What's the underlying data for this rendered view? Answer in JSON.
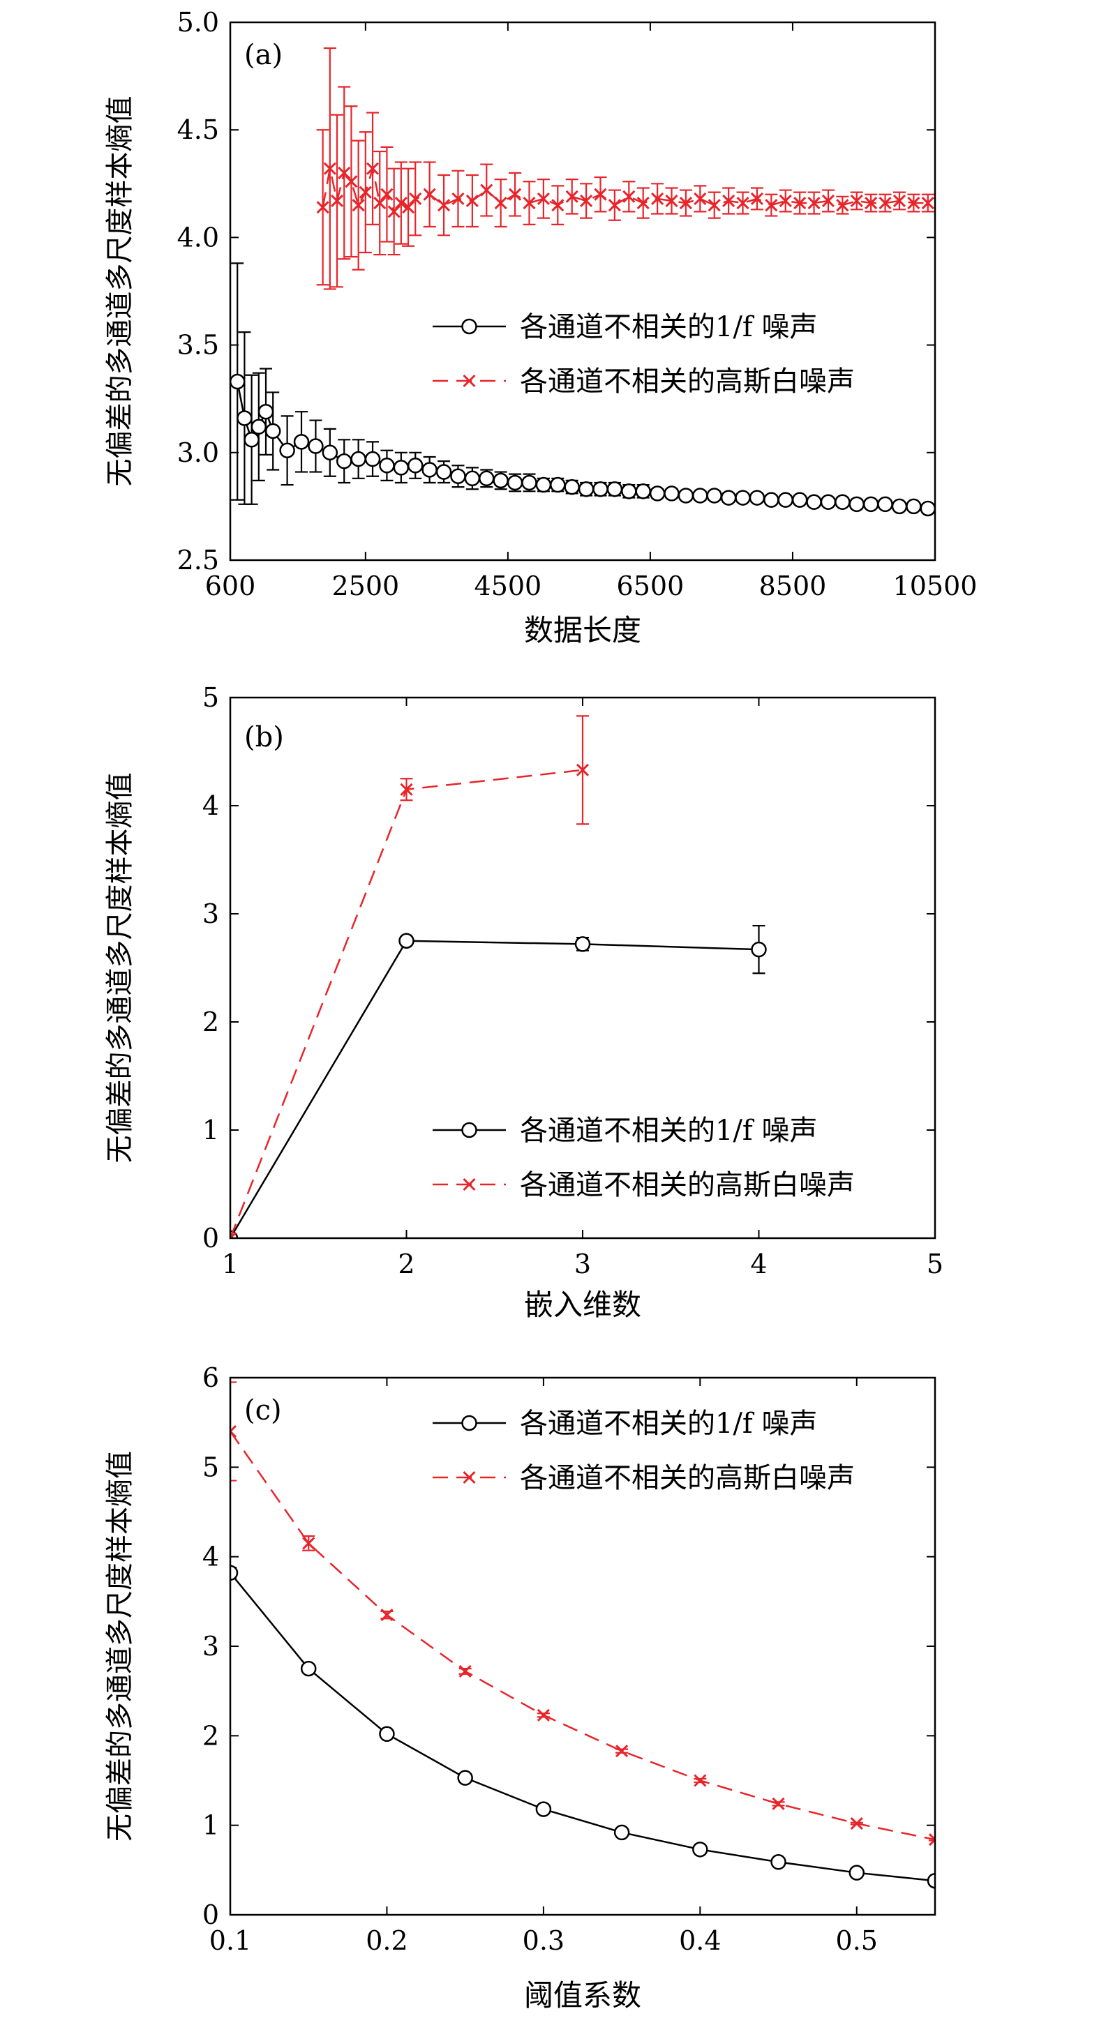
{
  "colors": {
    "black_series": "#000000",
    "red_series": "#e8242a",
    "axis": "#000000"
  },
  "chart_data": [
    {
      "type": "line",
      "panel_label": "(a)",
      "xlabel": "数据长度",
      "ylabel": "无偏差的多通道多尺度样本熵值",
      "xlim": [
        600,
        10500
      ],
      "ylim": [
        2.5,
        5.0
      ],
      "xticks": [
        "600",
        "2500",
        "4500",
        "6500",
        "8500",
        "10500"
      ],
      "yticks": [
        "2.5",
        "3.0",
        "3.5",
        "4.0",
        "4.5",
        "5.0"
      ],
      "legend": [
        "各通道不相关的1/f 噪声",
        "各通道不相关的高斯白噪声"
      ],
      "series": [
        {
          "name": "各通道不相关的1/f 噪声",
          "marker": "circle",
          "dash": false,
          "color": "#000000",
          "x": [
            700,
            800,
            900,
            1000,
            1100,
            1200,
            1400,
            1600,
            1800,
            2000,
            2200,
            2400,
            2600,
            2800,
            3000,
            3200,
            3400,
            3600,
            3800,
            4000,
            4200,
            4400,
            4600,
            4800,
            5000,
            5200,
            5400,
            5600,
            5800,
            6000,
            6200,
            6400,
            6600,
            6800,
            7000,
            7200,
            7400,
            7600,
            7800,
            8000,
            8200,
            8400,
            8600,
            8800,
            9000,
            9200,
            9400,
            9600,
            9800,
            10000,
            10200,
            10400
          ],
          "y": [
            3.33,
            3.16,
            3.06,
            3.12,
            3.19,
            3.1,
            3.01,
            3.05,
            3.03,
            3.0,
            2.96,
            2.97,
            2.97,
            2.94,
            2.93,
            2.94,
            2.92,
            2.91,
            2.89,
            2.88,
            2.88,
            2.87,
            2.86,
            2.86,
            2.85,
            2.85,
            2.84,
            2.83,
            2.83,
            2.83,
            2.82,
            2.82,
            2.81,
            2.81,
            2.8,
            2.8,
            2.8,
            2.79,
            2.79,
            2.79,
            2.78,
            2.78,
            2.78,
            2.77,
            2.77,
            2.77,
            2.76,
            2.76,
            2.76,
            2.75,
            2.75,
            2.74
          ],
          "err": [
            0.55,
            0.4,
            0.3,
            0.25,
            0.2,
            0.18,
            0.16,
            0.14,
            0.12,
            0.11,
            0.1,
            0.09,
            0.08,
            0.07,
            0.07,
            0.06,
            0.06,
            0.05,
            0.05,
            0.05,
            0.04,
            0.04,
            0.04,
            0.04,
            0.03,
            0.03,
            0.03,
            0.03,
            0.03,
            0.03,
            0.03,
            0.03,
            0.02,
            0.02,
            0.02,
            0.02,
            0.02,
            0.02,
            0.02,
            0.02,
            0.02,
            0.02,
            0.02,
            0.02,
            0.02,
            0.02,
            0.02,
            0.02,
            0.02,
            0.02,
            0.02,
            0.02
          ]
        },
        {
          "name": "各通道不相关的高斯白噪声",
          "marker": "x",
          "dash": true,
          "color": "#e8242a",
          "x": [
            1900,
            2000,
            2100,
            2200,
            2300,
            2400,
            2500,
            2600,
            2700,
            2800,
            2900,
            3000,
            3100,
            3200,
            3400,
            3600,
            3800,
            4000,
            4200,
            4400,
            4600,
            4800,
            5000,
            5200,
            5400,
            5600,
            5800,
            6000,
            6200,
            6400,
            6600,
            6800,
            7000,
            7200,
            7400,
            7600,
            7800,
            8000,
            8200,
            8400,
            8600,
            8800,
            9000,
            9200,
            9400,
            9600,
            9800,
            10000,
            10200,
            10400
          ],
          "y": [
            4.14,
            4.32,
            4.17,
            4.3,
            4.26,
            4.15,
            4.21,
            4.32,
            4.16,
            4.2,
            4.12,
            4.16,
            4.14,
            4.18,
            4.2,
            4.15,
            4.18,
            4.17,
            4.22,
            4.16,
            4.2,
            4.16,
            4.18,
            4.15,
            4.19,
            4.17,
            4.2,
            4.15,
            4.19,
            4.16,
            4.18,
            4.17,
            4.16,
            4.18,
            4.15,
            4.17,
            4.16,
            4.18,
            4.15,
            4.17,
            4.16,
            4.16,
            4.17,
            4.15,
            4.17,
            4.16,
            4.16,
            4.17,
            4.16,
            4.16
          ],
          "err": [
            0.36,
            0.56,
            0.4,
            0.4,
            0.35,
            0.3,
            0.28,
            0.26,
            0.24,
            0.22,
            0.2,
            0.19,
            0.18,
            0.17,
            0.15,
            0.14,
            0.13,
            0.12,
            0.12,
            0.11,
            0.1,
            0.1,
            0.09,
            0.09,
            0.08,
            0.08,
            0.08,
            0.07,
            0.07,
            0.07,
            0.07,
            0.06,
            0.06,
            0.06,
            0.06,
            0.06,
            0.05,
            0.05,
            0.05,
            0.05,
            0.05,
            0.05,
            0.05,
            0.04,
            0.04,
            0.04,
            0.04,
            0.04,
            0.04,
            0.04
          ]
        }
      ]
    },
    {
      "type": "line",
      "panel_label": "(b)",
      "xlabel": "嵌入维数",
      "ylabel": "无偏差的多通道多尺度样本熵值",
      "xlim": [
        1,
        5
      ],
      "ylim": [
        0,
        5
      ],
      "xticks": [
        "1",
        "2",
        "3",
        "4",
        "5"
      ],
      "yticks": [
        "0",
        "1",
        "2",
        "3",
        "4",
        "5"
      ],
      "legend": [
        "各通道不相关的1/f 噪声",
        "各通道不相关的高斯白噪声"
      ],
      "series": [
        {
          "name": "各通道不相关的1/f 噪声",
          "marker": "circle",
          "dash": false,
          "color": "#000000",
          "x": [
            1,
            2,
            3,
            4
          ],
          "y": [
            0,
            2.75,
            2.72,
            2.67
          ],
          "err": [
            0,
            0.02,
            0.06,
            0.22
          ]
        },
        {
          "name": "各通道不相关的高斯白噪声",
          "marker": "x",
          "dash": true,
          "color": "#e8242a",
          "x": [
            1,
            2,
            3
          ],
          "y": [
            0,
            4.15,
            4.33
          ],
          "err": [
            0,
            0.1,
            0.5
          ]
        }
      ]
    },
    {
      "type": "line",
      "panel_label": "(c)",
      "xlabel": "阈值系数",
      "ylabel": "无偏差的多通道多尺度样本熵值",
      "xlim": [
        0.1,
        0.55
      ],
      "ylim": [
        0,
        6
      ],
      "xticks": [
        "0.1",
        "0.2",
        "0.3",
        "0.4",
        "0.5"
      ],
      "xtick_values": [
        0.1,
        0.2,
        0.3,
        0.4,
        0.5
      ],
      "yticks": [
        "0",
        "1",
        "2",
        "3",
        "4",
        "5",
        "6"
      ],
      "legend": [
        "各通道不相关的1/f 噪声",
        "各通道不相关的高斯白噪声"
      ],
      "series": [
        {
          "name": "各通道不相关的1/f 噪声",
          "marker": "circle",
          "dash": false,
          "color": "#000000",
          "x": [
            0.1,
            0.15,
            0.2,
            0.25,
            0.3,
            0.35,
            0.4,
            0.45,
            0.5,
            0.55
          ],
          "y": [
            3.82,
            2.75,
            2.02,
            1.53,
            1.18,
            0.92,
            0.73,
            0.59,
            0.47,
            0.38
          ],
          "err": [
            0.06,
            0.03,
            0.02,
            0.02,
            0.01,
            0.01,
            0.01,
            0.01,
            0.01,
            0.01
          ]
        },
        {
          "name": "各通道不相关的高斯白噪声",
          "marker": "x",
          "dash": true,
          "color": "#e8242a",
          "x": [
            0.1,
            0.15,
            0.2,
            0.25,
            0.3,
            0.35,
            0.4,
            0.45,
            0.5,
            0.55
          ],
          "y": [
            5.4,
            4.15,
            3.35,
            2.72,
            2.23,
            1.83,
            1.5,
            1.24,
            1.02,
            0.84
          ],
          "err": [
            0.55,
            0.08,
            0.04,
            0.03,
            0.02,
            0.02,
            0.02,
            0.02,
            0.01,
            0.01
          ]
        }
      ]
    }
  ]
}
